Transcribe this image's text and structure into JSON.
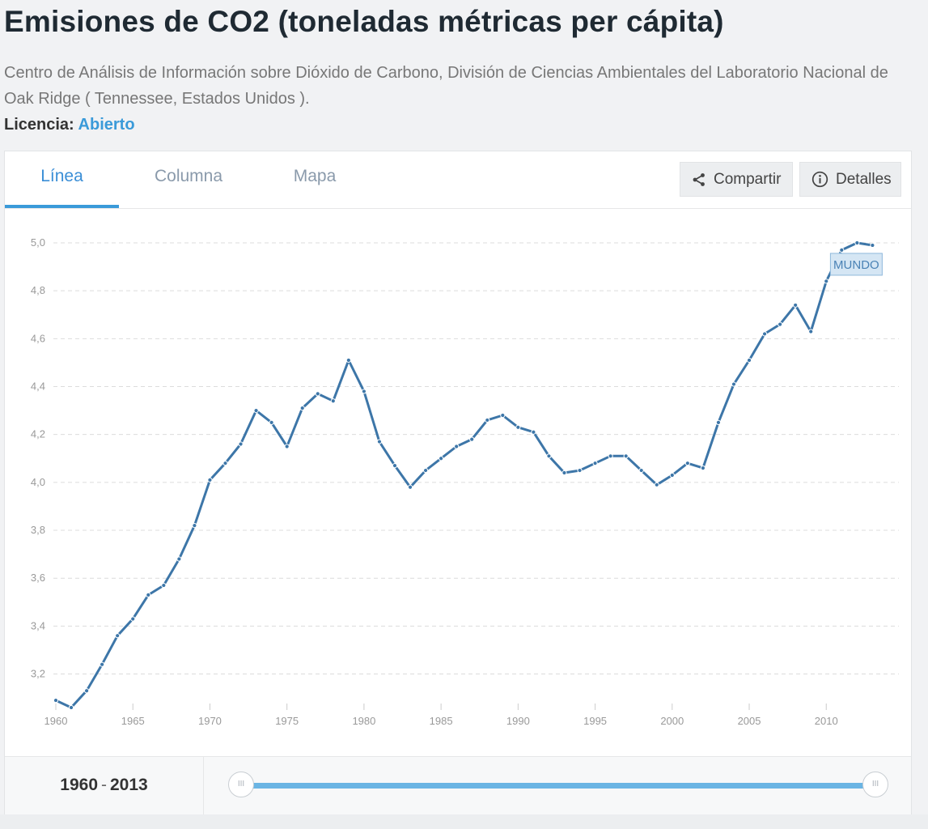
{
  "page": {
    "title": "Emisiones de CO2 (toneladas métricas per cápita)",
    "source": "Centro de Análisis de Información sobre Dióxido de Carbono, División de Ciencias Ambientales del Laboratorio Nacional de Oak Ridge ( Tennessee, Estados Unidos ).",
    "license_label": "Licencia:",
    "license_value": "Abierto"
  },
  "tabs": [
    {
      "label": "Línea",
      "active": true
    },
    {
      "label": "Columna",
      "active": false
    },
    {
      "label": "Mapa",
      "active": false
    }
  ],
  "actions": {
    "share_label": "Compartir",
    "share_icon": "share-icon",
    "details_label": "Detalles",
    "details_icon": "info-icon"
  },
  "range": {
    "start": "1960",
    "separator": "-",
    "end": "2013",
    "handle_glyph": "III",
    "start_fraction": 0,
    "end_fraction": 1
  },
  "colors": {
    "line": "#3d76a8",
    "accent": "#3a9ad9",
    "grid": "#dcdcdc",
    "tick_label": "#999999"
  },
  "chart_data": {
    "type": "line",
    "x_ticks": [
      1960,
      1965,
      1970,
      1975,
      1980,
      1985,
      1990,
      1995,
      2000,
      2005,
      2010
    ],
    "y_ticks": [
      "3,2",
      "3,4",
      "3,6",
      "3,8",
      "4,0",
      "4,2",
      "4,4",
      "4,6",
      "4,8",
      "5,0"
    ],
    "xlim": [
      1960,
      2015.5
    ],
    "ylim": [
      3.07,
      5.0
    ],
    "grid": true,
    "series": [
      {
        "name": "MUNDO",
        "x": [
          1960,
          1961,
          1962,
          1963,
          1964,
          1965,
          1966,
          1967,
          1968,
          1969,
          1970,
          1971,
          1972,
          1973,
          1974,
          1975,
          1976,
          1977,
          1978,
          1979,
          1980,
          1981,
          1982,
          1983,
          1984,
          1985,
          1986,
          1987,
          1988,
          1989,
          1990,
          1991,
          1992,
          1993,
          1994,
          1995,
          1996,
          1997,
          1998,
          1999,
          2000,
          2001,
          2002,
          2003,
          2004,
          2005,
          2006,
          2007,
          2008,
          2009,
          2010,
          2011,
          2012,
          2013
        ],
        "y": [
          3.09,
          3.06,
          3.13,
          3.24,
          3.36,
          3.43,
          3.53,
          3.57,
          3.68,
          3.82,
          4.01,
          4.08,
          4.16,
          4.3,
          4.25,
          4.15,
          4.31,
          4.37,
          4.34,
          4.51,
          4.38,
          4.17,
          4.07,
          3.98,
          4.05,
          4.1,
          4.15,
          4.18,
          4.26,
          4.28,
          4.23,
          4.21,
          4.11,
          4.04,
          4.05,
          4.08,
          4.11,
          4.11,
          4.05,
          3.99,
          4.03,
          4.08,
          4.06,
          4.25,
          4.41,
          4.51,
          4.62,
          4.66,
          4.74,
          4.63,
          4.84,
          4.97,
          5.0,
          4.99
        ]
      }
    ]
  }
}
